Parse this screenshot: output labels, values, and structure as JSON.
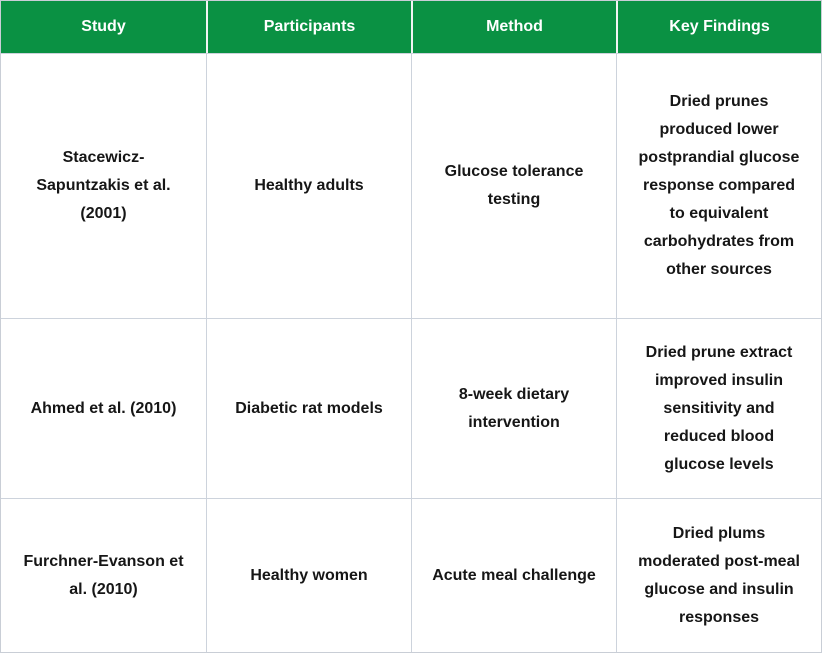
{
  "table": {
    "columns": [
      {
        "key": "study",
        "label": "Study"
      },
      {
        "key": "participants",
        "label": "Participants"
      },
      {
        "key": "method",
        "label": "Method"
      },
      {
        "key": "findings",
        "label": "Key Findings"
      }
    ],
    "rows": [
      {
        "study": "Stacewicz-Sapuntzakis et al. (2001)",
        "participants": "Healthy adults",
        "method": "Glucose tolerance testing",
        "findings": "Dried prunes produced lower postprandial glucose response compared to equivalent carbohydrates from other sources"
      },
      {
        "study": "Ahmed et al. (2010)",
        "participants": "Diabetic rat models",
        "method": "8-week dietary intervention",
        "findings": "Dried prune extract improved insulin sensitivity and reduced blood glucose levels"
      },
      {
        "study": "Furchner-Evanson et al. (2010)",
        "participants": "Healthy women",
        "method": "Acute meal challenge",
        "findings": "Dried plums moderated post-meal glucose and insulin responses"
      }
    ],
    "colors": {
      "header_bg": "#0a9143",
      "header_text": "#ffffff",
      "body_border": "#cdd3dc",
      "body_text": "#161616"
    }
  },
  "chart_data": {
    "type": "table",
    "title": "",
    "columns": [
      "Study",
      "Participants",
      "Method",
      "Key Findings"
    ],
    "rows": [
      [
        "Stacewicz-Sapuntzakis et al. (2001)",
        "Healthy adults",
        "Glucose tolerance testing",
        "Dried prunes produced lower postprandial glucose response compared to equivalent carbohydrates from other sources"
      ],
      [
        "Ahmed et al. (2010)",
        "Diabetic rat models",
        "8-week dietary intervention",
        "Dried prune extract improved insulin sensitivity and reduced blood glucose levels"
      ],
      [
        "Furchner-Evanson et al. (2010)",
        "Healthy women",
        "Acute meal challenge",
        "Dried plums moderated post-meal glucose and insulin responses"
      ]
    ]
  }
}
